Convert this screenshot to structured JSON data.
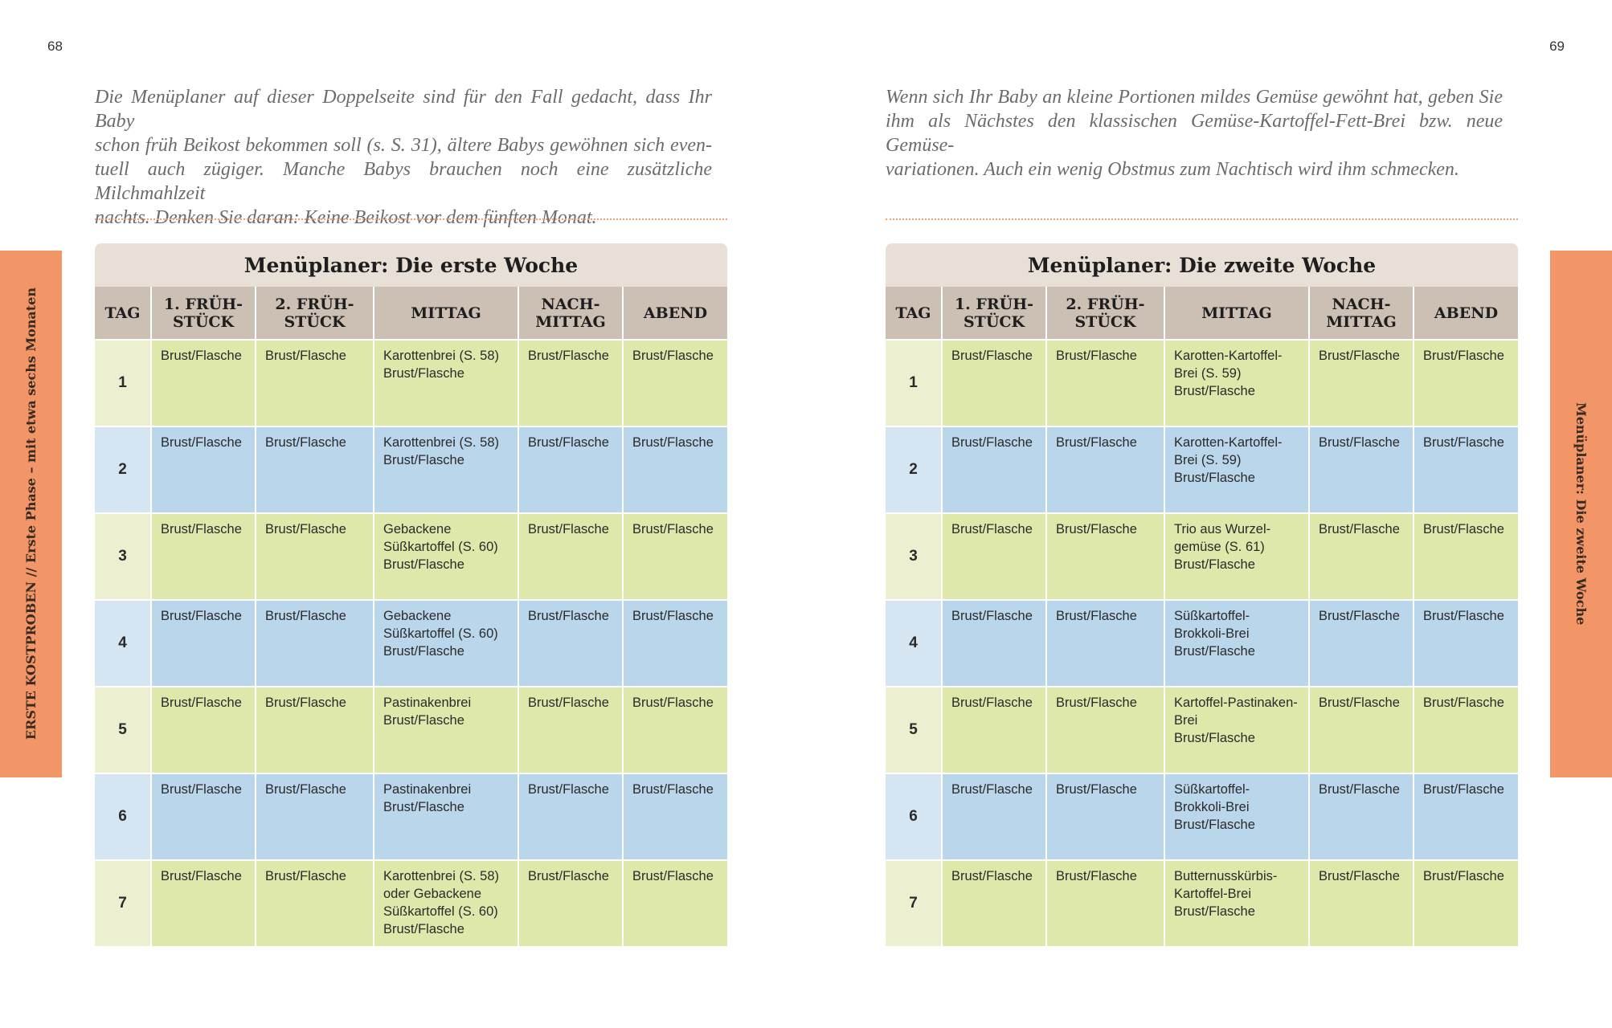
{
  "pages": [
    {
      "page_number": "68",
      "intro": [
        "Die Menüplaner auf dieser Doppelseite sind für den Fall gedacht, dass Ihr Baby",
        "schon früh Beikost bekommen soll (s. S. 31), ältere Babys gewöhnen sich even-",
        "tuell auch zügiger. Manche Babys brauchen noch eine zusätzliche Milchmahlzeit",
        "nachts. Denken Sie daran: Keine Beikost vor dem fünften Monat."
      ],
      "side_tab": "ERSTE KOSTPROBEN // Erste Phase – mit etwa sechs Monaten",
      "table": {
        "title": "Menüplaner: Die erste Woche",
        "headers": [
          "TAG",
          "1. FRÜH-\nSTÜCK",
          "2. FRÜH-\nSTÜCK",
          "MITTAG",
          "NACH-\nMITTAG",
          "ABEND"
        ],
        "rows": [
          [
            "1",
            "Brust/Flasche",
            "Brust/Flasche",
            "Karottenbrei (S. 58)\nBrust/Flasche",
            "Brust/Flasche",
            "Brust/Flasche"
          ],
          [
            "2",
            "Brust/Flasche",
            "Brust/Flasche",
            "Karottenbrei (S. 58)\nBrust/Flasche",
            "Brust/Flasche",
            "Brust/Flasche"
          ],
          [
            "3",
            "Brust/Flasche",
            "Brust/Flasche",
            "Gebackene\nSüßkartoffel (S. 60)\nBrust/Flasche",
            "Brust/Flasche",
            "Brust/Flasche"
          ],
          [
            "4",
            "Brust/Flasche",
            "Brust/Flasche",
            "Gebackene\nSüßkartoffel (S. 60)\nBrust/Flasche",
            "Brust/Flasche",
            "Brust/Flasche"
          ],
          [
            "5",
            "Brust/Flasche",
            "Brust/Flasche",
            "Pastinakenbrei\nBrust/Flasche",
            "Brust/Flasche",
            "Brust/Flasche"
          ],
          [
            "6",
            "Brust/Flasche",
            "Brust/Flasche",
            "Pastinakenbrei\nBrust/Flasche",
            "Brust/Flasche",
            "Brust/Flasche"
          ],
          [
            "7",
            "Brust/Flasche",
            "Brust/Flasche",
            "Karottenbrei (S. 58)\noder Gebackene\nSüßkartoffel (S. 60)\nBrust/Flasche",
            "Brust/Flasche",
            "Brust/Flasche"
          ]
        ]
      }
    },
    {
      "page_number": "69",
      "intro": [
        "Wenn sich Ihr Baby an kleine Portionen mildes Gemüse gewöhnt hat, geben Sie",
        "ihm als Nächstes den klassischen Gemüse-Kartoffel-Fett-Brei bzw. neue Gemüse-",
        "variationen. Auch ein wenig Obstmus zum Nachtisch wird ihm schmecken."
      ],
      "side_tab": "Menüplaner: Die zweite Woche",
      "table": {
        "title": "Menüplaner: Die zweite Woche",
        "headers": [
          "TAG",
          "1. FRÜH-\nSTÜCK",
          "2. FRÜH-\nSTÜCK",
          "MITTAG",
          "NACH-\nMITTAG",
          "ABEND"
        ],
        "rows": [
          [
            "1",
            "Brust/Flasche",
            "Brust/Flasche",
            "Karotten-Kartoffel-\nBrei (S. 59)\nBrust/Flasche",
            "Brust/Flasche",
            "Brust/Flasche"
          ],
          [
            "2",
            "Brust/Flasche",
            "Brust/Flasche",
            "Karotten-Kartoffel-\nBrei (S. 59)\nBrust/Flasche",
            "Brust/Flasche",
            "Brust/Flasche"
          ],
          [
            "3",
            "Brust/Flasche",
            "Brust/Flasche",
            "Trio aus Wurzel-\ngemüse (S. 61)\nBrust/Flasche",
            "Brust/Flasche",
            "Brust/Flasche"
          ],
          [
            "4",
            "Brust/Flasche",
            "Brust/Flasche",
            "Süßkartoffel-\nBrokkoli-Brei\nBrust/Flasche",
            "Brust/Flasche",
            "Brust/Flasche"
          ],
          [
            "5",
            "Brust/Flasche",
            "Brust/Flasche",
            "Kartoffel-Pastinaken-\nBrei\nBrust/Flasche",
            "Brust/Flasche",
            "Brust/Flasche"
          ],
          [
            "6",
            "Brust/Flasche",
            "Brust/Flasche",
            "Süßkartoffel-\nBrokkoli-Brei\nBrust/Flasche",
            "Brust/Flasche",
            "Brust/Flasche"
          ],
          [
            "7",
            "Brust/Flasche",
            "Brust/Flasche",
            "Butternusskürbis-\nKartoffel-Brei\nBrust/Flasche",
            "Brust/Flasche",
            "Brust/Flasche"
          ]
        ]
      }
    }
  ]
}
